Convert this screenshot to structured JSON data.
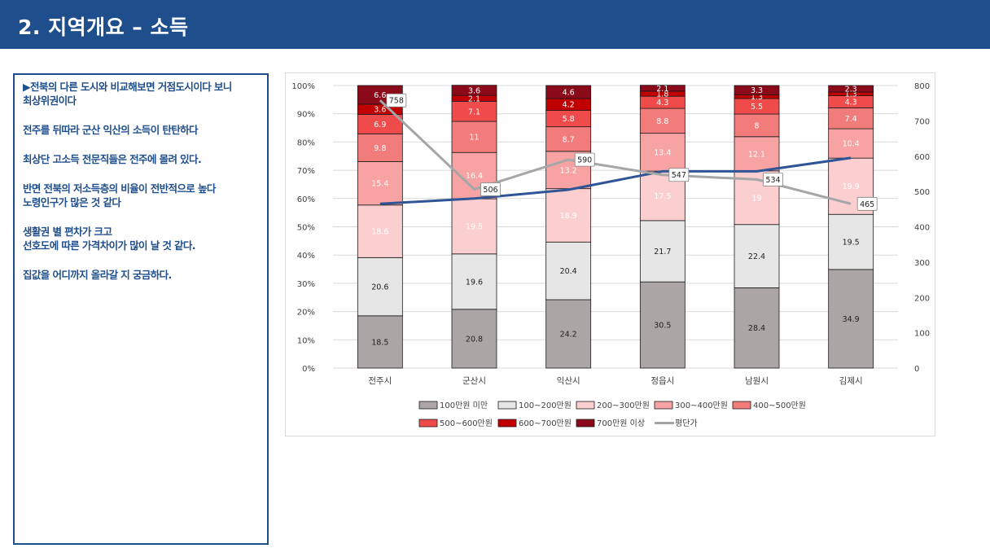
{
  "header": {
    "title": "2. 지역개요 – 소득"
  },
  "notes": [
    [
      "▶전북의 다른 도시와 비교해보면 거점도시이다 보니",
      "최상위권이다"
    ],
    [
      "전주를 뒤따라 군산 익산의 소득이 탄탄하다"
    ],
    [
      "최상단 고소득  전문직들은 전주에 몰려 있다."
    ],
    [
      "반면 전북의 저소득층의 비율이 전반적으로 높다",
      "노령인구가 많은 것 같다"
    ],
    [
      "생활권 별 편차가 크고",
      "선호도에 따른 가격차이가 많이 날 것 같다."
    ],
    [
      "집값을 어디까지 올라갈 지 궁금하다."
    ]
  ],
  "chart_data": {
    "type": "bar",
    "stacked": true,
    "categories": [
      "전주시",
      "군산시",
      "익산시",
      "정읍시",
      "남원시",
      "김제시"
    ],
    "y_left": {
      "ticks": [
        "0%",
        "10%",
        "20%",
        "30%",
        "40%",
        "50%",
        "60%",
        "70%",
        "80%",
        "90%",
        "100%"
      ],
      "range": [
        0,
        100
      ]
    },
    "y_right": {
      "ticks": [
        "0",
        "100",
        "200",
        "300",
        "400",
        "500",
        "600",
        "700",
        "800"
      ],
      "range": [
        0,
        800
      ]
    },
    "series": [
      {
        "name": "100만원 미만",
        "color": "#aca5a5",
        "labelColor": "#222222",
        "values": [
          18.5,
          20.8,
          24.2,
          30.5,
          28.4,
          34.9
        ]
      },
      {
        "name": "100~200만원",
        "color": "#e6e6e6",
        "labelColor": "#222222",
        "values": [
          20.6,
          19.6,
          20.4,
          21.7,
          22.4,
          19.5
        ]
      },
      {
        "name": "200~300만원",
        "color": "#fbcfcf",
        "labelColor": "#ffffff",
        "values": [
          18.6,
          19.5,
          18.9,
          17.5,
          19,
          19.9
        ]
      },
      {
        "name": "300~400만원",
        "color": "#f7a3a3",
        "labelColor": "#ffffff",
        "values": [
          15.4,
          16.4,
          13.2,
          13.4,
          12.1,
          10.4
        ]
      },
      {
        "name": "400~500만원",
        "color": "#f27b7b",
        "labelColor": "#ffffff",
        "values": [
          9.8,
          11,
          8.7,
          8.8,
          8,
          7.4
        ]
      },
      {
        "name": "500~600만원",
        "color": "#ef4b4b",
        "labelColor": "#ffffff",
        "values": [
          6.9,
          7.1,
          5.8,
          4.3,
          5.5,
          4.3
        ]
      },
      {
        "name": "600~700만원",
        "color": "#c00000",
        "labelColor": "#ffffff",
        "values": [
          3.6,
          2.1,
          4.2,
          1.8,
          1.3,
          1.3
        ]
      },
      {
        "name": "700만원 이상",
        "color": "#8b0a1a",
        "labelColor": "#ffffff",
        "values": [
          6.6,
          3.6,
          4.6,
          2.1,
          3.3,
          2.3
        ]
      }
    ],
    "line_series": [
      {
        "name": "평단가",
        "color": "#a6a6a6",
        "values": [
          758,
          506,
          590,
          547,
          534,
          465
        ],
        "labels": true
      }
    ],
    "unlabeled_line": {
      "color": "#2f5597",
      "values": [
        465,
        480,
        505,
        557,
        557,
        595
      ]
    }
  }
}
